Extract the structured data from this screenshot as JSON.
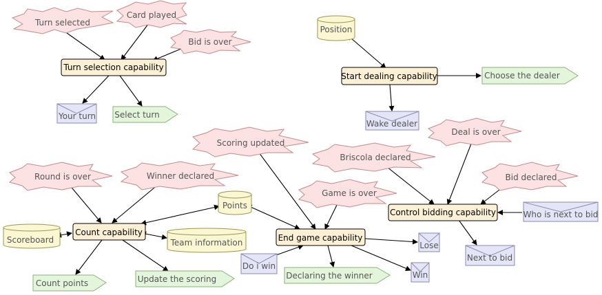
{
  "events": {
    "turn_selected": "Turn selected",
    "card_played": "Card played",
    "bid_is_over": "Bid is over",
    "scoring_updated": "Scoring updated",
    "round_is_over": "Round is over",
    "winner_declared": "Winner declared",
    "briscola_declared": "Briscola declared",
    "deal_is_over": "Deal is over",
    "game_is_over": "Game is over",
    "bid_declared": "Bid declared"
  },
  "capabilities": {
    "turn_selection": "Turn selection capability",
    "start_dealing": "Start dealing capability",
    "count": "Count capability",
    "end_game": "End game capability",
    "control_bidding": "Control bidding capability"
  },
  "beliefs": {
    "position": "Position",
    "points": "Points",
    "scoreboard": "Scoreboard",
    "team_information": "Team information"
  },
  "messages": {
    "your_turn": "Your turn",
    "wake_dealer": "Wake dealer",
    "who_is_next_to_bid": "Who is next to bid",
    "lose": "Lose",
    "do_i_win": "Do i win",
    "win": "Win",
    "next_to_bid": "Next to bid"
  },
  "actions": {
    "select_turn": "Select turn",
    "choose_the_dealer": "Choose the dealer",
    "count_points": "Count points",
    "update_the_scoring": "Update the scoring",
    "declaring_the_winner": "Declaring the winner"
  },
  "colors": {
    "event_fill": "#fde2e4",
    "capability_fill": "#fdf0d5",
    "belief_fill": "#fbf7d3",
    "message_fill": "#e4e6f8",
    "action_fill": "#e3f6dc"
  }
}
